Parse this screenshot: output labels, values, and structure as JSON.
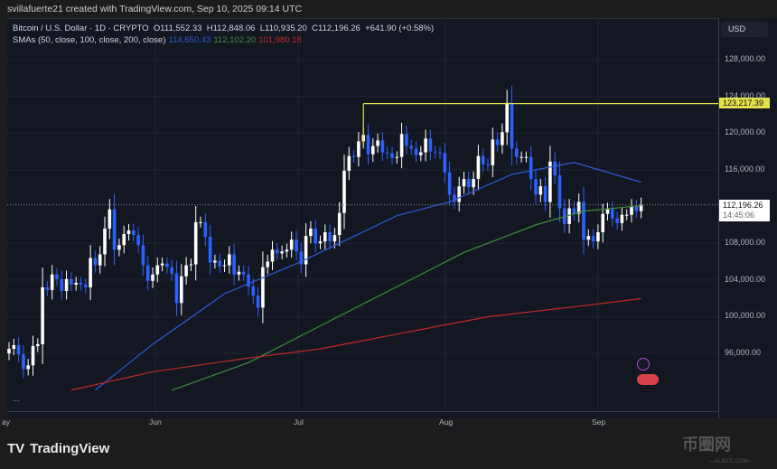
{
  "header": {
    "created": "svillafuerte21 created with TradingView.com, Sep 10, 2025 09:14 UTC"
  },
  "legend": {
    "symbol": "Bitcoin / U.S. Dollar · 1D · CRYPTO",
    "open": "O111,552.33",
    "high": "H112,848.06",
    "low": "L110,935.20",
    "close": "C112,196.26",
    "change": "+641.90 (+0.58%)",
    "sma_label": "SMAs (50, close, 100, close, 200, close)",
    "sma50": "114,650.43",
    "sma100": "112,102.20",
    "sma200": "101,980.18"
  },
  "axis": {
    "currency": "USD",
    "ticks": [
      "128,000.00",
      "124,000.00",
      "120,000.00",
      "116,000.00",
      "108,000.00",
      "104,000.00",
      "100,000.00",
      "96,000.00"
    ],
    "resistance_label": "123,217.39",
    "price_label": "112,196.26",
    "countdown": "14:45:06"
  },
  "months": [
    "ay",
    "Jun",
    "Jul",
    "Aug",
    "Sep"
  ],
  "footer": {
    "brand": "TradingView",
    "watermark": "币圈网",
    "watermark_sub": "—ALIBTC.COM—",
    "more": "..."
  },
  "colors": {
    "up": "#ffffff",
    "down": "#2962ff",
    "sma50": "#2f5bd6",
    "sma100": "#3e8e41",
    "sma200": "#c62828",
    "resistance": "#e6e04a"
  },
  "chart_data": {
    "type": "candlestick",
    "start": "May 1",
    "interval": "1D",
    "ylim": [
      92000,
      131500
    ],
    "closes": [
      96.5,
      96.9,
      95.9,
      94.3,
      94.7,
      96.8,
      97.0,
      103.2,
      102.9,
      104.6,
      104.1,
      102.8,
      104.1,
      103.5,
      103.7,
      103.5,
      103.2,
      106.4,
      105.6,
      106.8,
      109.6,
      111.7,
      107.3,
      107.8,
      109.0,
      109.4,
      108.9,
      107.8,
      105.6,
      103.9,
      104.6,
      105.6,
      105.8,
      105.4,
      104.7,
      101.5,
      104.4,
      105.6,
      105.7,
      110.3,
      110.3,
      108.7,
      105.9,
      106.1,
      105.5,
      105.6,
      106.8,
      104.6,
      104.9,
      104.6,
      103.3,
      102.3,
      101.0,
      105.4,
      106.0,
      107.3,
      106.9,
      107.1,
      107.3,
      108.4,
      107.1,
      105.7,
      108.8,
      109.6,
      108.0,
      108.2,
      109.2,
      108.2,
      108.9,
      111.3,
      115.9,
      117.5,
      117.4,
      119.1,
      119.8,
      117.7,
      118.6,
      119.2,
      117.9,
      117.8,
      117.3,
      117.4,
      119.9,
      118.6,
      118.3,
      117.6,
      117.9,
      119.4,
      118.0,
      117.9,
      117.8,
      115.7,
      113.3,
      112.5,
      114.2,
      115.0,
      114.1,
      115.0,
      117.5,
      116.6,
      116.5,
      119.3,
      118.7,
      120.1,
      123.3,
      118.3,
      117.4,
      117.4,
      117.4,
      115.0,
      113.3,
      114.2,
      112.5,
      116.9,
      115.4,
      111.8,
      110.1,
      111.8,
      111.2,
      112.5,
      108.4,
      108.8,
      108.2,
      109.2,
      111.2,
      111.7,
      110.7,
      110.2,
      111.1,
      111.1,
      112.0,
      111.5,
      112.2
    ],
    "sma50": [
      [
        18,
        92
      ],
      [
        30,
        97
      ],
      [
        45,
        102.5
      ],
      [
        61,
        106
      ],
      [
        81,
        111
      ],
      [
        92,
        112.5
      ],
      [
        105,
        115.5
      ],
      [
        118,
        116.8
      ],
      [
        132,
        114.65
      ]
    ],
    "sma100": [
      [
        34,
        92
      ],
      [
        50,
        95
      ],
      [
        65,
        99
      ],
      [
        80,
        103
      ],
      [
        95,
        107
      ],
      [
        110,
        110
      ],
      [
        120,
        111.5
      ],
      [
        132,
        112.1
      ]
    ],
    "sma200": [
      [
        13,
        92
      ],
      [
        30,
        94
      ],
      [
        50,
        95.5
      ],
      [
        65,
        96.5
      ],
      [
        80,
        98
      ],
      [
        100,
        100
      ],
      [
        120,
        101.2
      ],
      [
        132,
        101.98
      ]
    ],
    "resistance": {
      "value": 123217.39,
      "from_day": 74
    },
    "last": 112196.26
  }
}
